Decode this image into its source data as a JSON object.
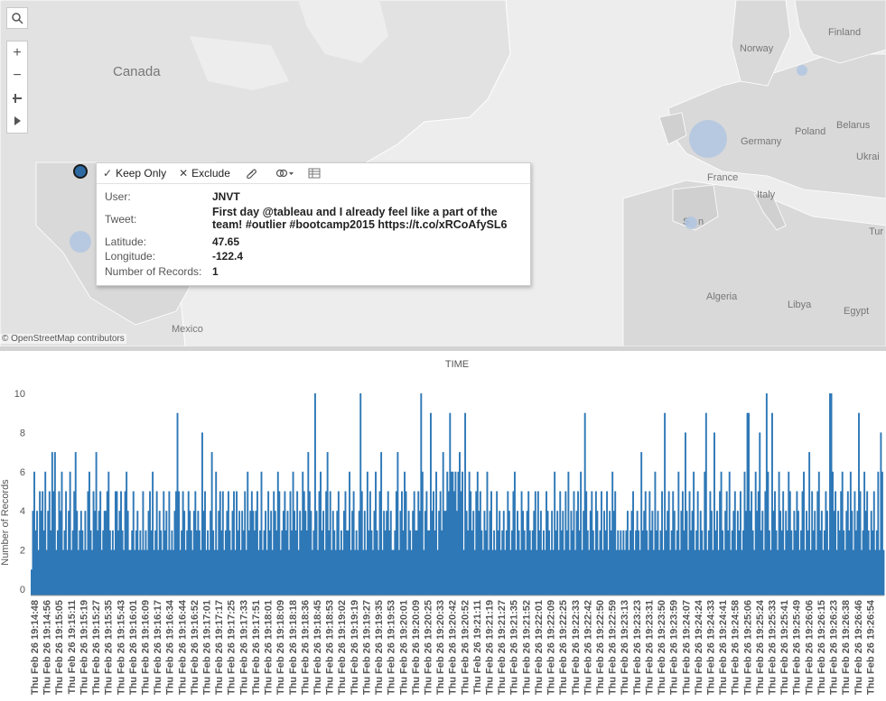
{
  "map": {
    "labels": {
      "canada": "Canada",
      "mexico": "Mexico",
      "norway": "Norway",
      "finland": "Finland",
      "germany": "Germany",
      "poland": "Poland",
      "belarus": "Belarus",
      "ukraine": "Ukrai",
      "france": "France",
      "italy": "Italy",
      "spain": "S",
      "spain2": "n",
      "algeria": "Algeria",
      "libya": "Libya",
      "egypt": "Egypt",
      "turkey": "Tur"
    },
    "attribution": "© OpenStreetMap contributors",
    "controls": {
      "search_icon": "search-icon",
      "zoom_in_icon": "plus-icon",
      "zoom_out_icon": "minus-icon",
      "pin_icon": "pin-icon",
      "expand_icon": "play-icon"
    },
    "mark_color": "#b0c6e0",
    "selected_color": "#2d6aa3"
  },
  "tooltip": {
    "keep_only": "Keep Only",
    "exclude": "Exclude",
    "rows": [
      {
        "key": "User:",
        "value": "JNVT"
      },
      {
        "key": "Tweet:",
        "value": "First day @tableau and I already feel like a part of the"
      },
      {
        "key": "",
        "value": "team! #outlier #bootcamp2015 https://t.co/xRCoAfySL6"
      },
      {
        "key": "Latitude:",
        "value": "47.65"
      },
      {
        "key": "Longitude:",
        "value": "-122.4"
      },
      {
        "key": "Number of Records:",
        "value": "1"
      }
    ]
  },
  "chart_data": {
    "type": "bar",
    "title": "TIME",
    "ylabel": "Number of Records",
    "ylim": [
      0,
      10
    ],
    "yticks": [
      0,
      2,
      4,
      6,
      8,
      10
    ],
    "bar_color": "#2e78b7",
    "x_tick_labels": [
      "Thu Feb 26 19:14:48",
      "Thu Feb 26 19:14:56",
      "Thu Feb 26 19:15:05",
      "Thu Feb 26 19:15:11",
      "Thu Feb 26 19:15:19",
      "Thu Feb 26 19:15:27",
      "Thu Feb 26 19:15:35",
      "Thu Feb 26 19:15:43",
      "Thu Feb 26 19:16:01",
      "Thu Feb 26 19:16:09",
      "Thu Feb 26 19:16:17",
      "Thu Feb 26 19:16:34",
      "Thu Feb 26 19:16:44",
      "Thu Feb 26 19:16:52",
      "Thu Feb 26 19:17:01",
      "Thu Feb 26 19:17:17",
      "Thu Feb 26 19:17:25",
      "Thu Feb 26 19:17:33",
      "Thu Feb 26 19:17:51",
      "Thu Feb 26 19:18:01",
      "Thu Feb 26 19:18:09",
      "Thu Feb 26 19:18:18",
      "Thu Feb 26 19:18:36",
      "Thu Feb 26 19:18:45",
      "Thu Feb 26 19:18:53",
      "Thu Feb 26 19:19:02",
      "Thu Feb 26 19:19:19",
      "Thu Feb 26 19:19:27",
      "Thu Feb 26 19:19:35",
      "Thu Feb 26 19:19:53",
      "Thu Feb 26 19:20:01",
      "Thu Feb 26 19:20:09",
      "Thu Feb 26 19:20:25",
      "Thu Feb 26 19:20:33",
      "Thu Feb 26 19:20:42",
      "Thu Feb 26 19:20:52",
      "Thu Feb 26 19:21:11",
      "Thu Feb 26 19:21:19",
      "Thu Feb 26 19:21:27",
      "Thu Feb 26 19:21:35",
      "Thu Feb 26 19:21:52",
      "Thu Feb 26 19:22:01",
      "Thu Feb 26 19:22:09",
      "Thu Feb 26 19:22:25",
      "Thu Feb 26 19:22:33",
      "Thu Feb 26 19:22:42",
      "Thu Feb 26 19:22:50",
      "Thu Feb 26 19:22:59",
      "Thu Feb 26 19:23:13",
      "Thu Feb 26 19:23:23",
      "Thu Feb 26 19:23:31",
      "Thu Feb 26 19:23:50",
      "Thu Feb 26 19:23:59",
      "Thu Feb 26 19:24:07",
      "Thu Feb 26 19:24:24",
      "Thu Feb 26 19:24:33",
      "Thu Feb 26 19:24:41",
      "Thu Feb 26 19:24:58",
      "Thu Feb 26 19:25:06",
      "Thu Feb 26 19:25:24",
      "Thu Feb 26 19:25:33",
      "Thu Feb 26 19:25:41",
      "Thu Feb 26 19:25:49",
      "Thu Feb 26 19:26:06",
      "Thu Feb 26 19:26:15",
      "Thu Feb 26 19:26:23",
      "Thu Feb 26 19:26:38",
      "Thu Feb 26 19:26:46",
      "Thu Feb 26 19:26:54"
    ],
    "values": [
      1,
      4,
      6,
      3,
      4,
      2,
      5,
      4,
      5,
      3,
      6,
      2,
      4,
      5,
      3,
      7,
      5,
      7,
      2,
      3,
      5,
      4,
      6,
      2,
      3,
      5,
      2,
      4,
      6,
      2,
      3,
      5,
      7,
      4,
      2,
      3,
      4,
      3,
      2,
      4,
      2,
      5,
      6,
      3,
      2,
      5,
      4,
      7,
      3,
      4,
      5,
      2,
      3,
      4,
      4,
      5,
      6,
      3,
      2,
      3,
      2,
      5,
      5,
      3,
      4,
      5,
      3,
      2,
      5,
      6,
      4,
      2,
      2,
      3,
      5,
      2,
      3,
      4,
      2,
      3,
      2,
      5,
      2,
      3,
      2,
      4,
      5,
      3,
      6,
      2,
      3,
      5,
      2,
      4,
      3,
      2,
      5,
      3,
      4,
      2,
      5,
      2,
      3,
      2,
      4,
      5,
      9,
      5,
      2,
      3,
      5,
      4,
      2,
      3,
      5,
      4,
      3,
      2,
      4,
      5,
      3,
      4,
      3,
      2,
      8,
      4,
      5,
      2,
      3,
      2,
      4,
      7,
      3,
      2,
      6,
      2,
      4,
      5,
      3,
      5,
      2,
      3,
      4,
      5,
      3,
      2,
      4,
      5,
      2,
      5,
      3,
      4,
      2,
      4,
      3,
      5,
      2,
      6,
      3,
      4,
      5,
      4,
      3,
      4,
      5,
      2,
      3,
      6,
      2,
      3,
      4,
      2,
      5,
      3,
      4,
      2,
      5,
      4,
      3,
      6,
      5,
      2,
      3,
      4,
      5,
      3,
      4,
      2,
      5,
      3,
      6,
      4,
      3,
      5,
      2,
      4,
      3,
      6,
      5,
      4,
      3,
      7,
      5,
      4,
      2,
      3,
      10,
      4,
      2,
      5,
      6,
      3,
      4,
      2,
      5,
      7,
      3,
      5,
      2,
      4,
      3,
      2,
      4,
      5,
      2,
      3,
      2,
      4,
      5,
      3,
      3,
      6,
      2,
      4,
      5,
      2,
      3,
      2,
      4,
      10,
      5,
      2,
      4,
      2,
      6,
      3,
      5,
      3,
      2,
      4,
      6,
      3,
      2,
      5,
      7,
      2,
      4,
      3,
      4,
      5,
      3,
      4,
      2,
      2,
      3,
      5,
      7,
      2,
      4,
      5,
      3,
      6,
      5,
      2,
      4,
      3,
      2,
      4,
      5,
      3,
      3,
      5,
      4,
      10,
      6,
      2,
      4,
      5,
      3,
      3,
      9,
      4,
      5,
      3,
      6,
      2,
      4,
      5,
      3,
      7,
      4,
      4,
      6,
      5,
      9,
      6,
      6,
      5,
      6,
      4,
      6,
      7,
      5,
      6,
      2,
      9,
      4,
      3,
      6,
      5,
      3,
      4,
      2,
      5,
      6,
      4,
      5,
      3,
      2,
      4,
      3,
      6,
      2,
      4,
      5,
      2,
      3,
      2,
      5,
      3,
      4,
      2,
      3,
      4,
      2,
      3,
      5,
      4,
      2,
      3,
      5,
      6,
      2,
      4,
      3,
      2,
      5,
      4,
      3,
      2,
      4,
      5,
      3,
      2,
      3,
      4,
      5,
      2,
      5,
      3,
      4,
      2,
      3,
      2,
      5,
      4,
      3,
      2,
      4,
      2,
      6,
      3,
      4,
      2,
      5,
      3,
      4,
      2,
      5,
      3,
      6,
      2,
      4,
      3,
      5,
      2,
      4,
      5,
      3,
      6,
      2,
      4,
      9,
      5,
      3,
      2,
      4,
      5,
      3,
      2,
      5,
      4,
      2,
      3,
      5,
      2,
      4,
      3,
      5,
      2,
      4,
      3,
      6,
      4,
      5,
      2,
      3,
      2,
      3,
      2,
      3,
      2,
      3,
      4,
      2,
      3,
      4,
      5,
      2,
      3,
      4,
      3,
      2,
      7,
      3,
      4,
      5,
      3,
      2,
      5,
      3,
      4,
      2,
      6,
      3,
      4,
      2,
      3,
      5,
      2,
      9,
      3,
      4,
      5,
      2,
      3,
      5,
      4,
      2,
      3,
      6,
      2,
      4,
      5,
      3,
      8,
      4,
      2,
      5,
      3,
      4,
      6,
      2,
      3,
      5,
      2,
      4,
      3,
      2,
      6,
      9,
      2,
      3,
      5,
      4,
      2,
      8,
      3,
      4,
      2,
      5,
      6,
      3,
      2,
      4,
      5,
      3,
      6,
      2,
      3,
      4,
      5,
      2,
      4,
      3,
      5,
      2,
      3,
      6,
      4,
      9,
      9,
      4,
      5,
      3,
      2,
      6,
      4,
      5,
      8,
      3,
      4,
      2,
      5,
      10,
      6,
      3,
      2,
      9,
      4,
      5,
      3,
      2,
      6,
      4,
      3,
      5,
      2,
      4,
      3,
      6,
      5,
      3,
      2,
      4,
      3,
      5,
      4,
      2,
      3,
      5,
      6,
      2,
      4,
      3,
      7,
      2,
      5,
      3,
      4,
      2,
      5,
      6,
      3,
      4,
      2,
      3,
      5,
      4,
      2,
      10,
      10,
      6,
      4,
      5,
      2,
      4,
      3,
      5,
      6,
      3,
      2,
      4,
      5,
      3,
      6,
      4,
      2,
      5,
      3,
      4,
      9,
      5,
      2,
      3,
      6,
      4,
      5,
      3,
      2,
      4,
      3,
      5,
      2,
      3,
      6,
      2,
      8,
      6,
      2
    ]
  }
}
